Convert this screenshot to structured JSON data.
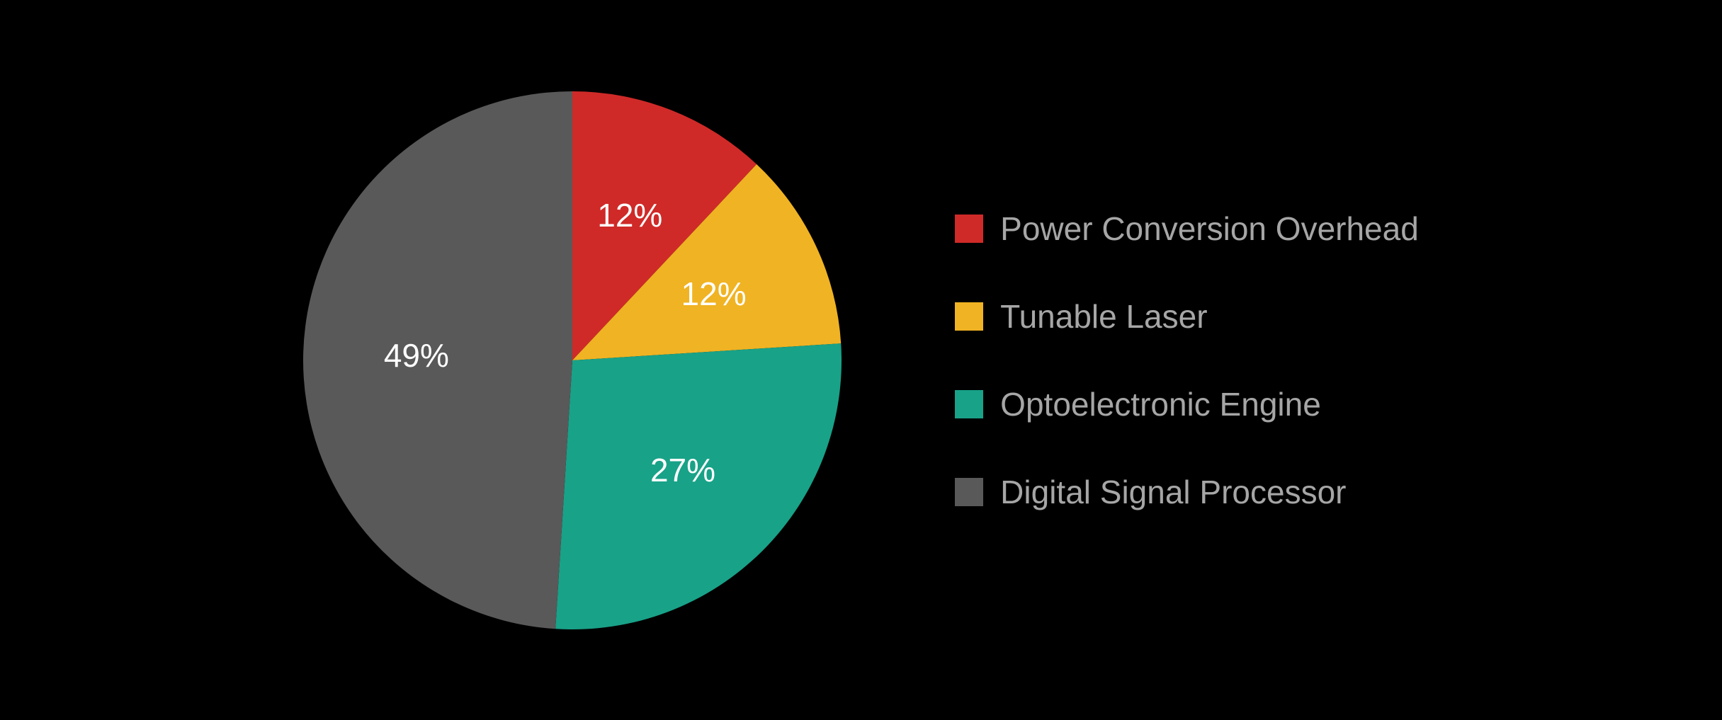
{
  "chart": {
    "type": "pie",
    "background_color": "#000000",
    "pie_radius": 380,
    "start_angle_deg": -90,
    "label_fontsize": 46,
    "label_color": "#ffffff",
    "legend_fontsize": 46,
    "legend_text_color": "#a6a6a6",
    "legend_swatch_size": 40,
    "slices": [
      {
        "label": "Power Conversion Overhead",
        "value": 12,
        "display": "12%",
        "color": "#cf2a28"
      },
      {
        "label": "Tunable Laser",
        "value": 12,
        "display": "12%",
        "color": "#f0b323"
      },
      {
        "label": "Optoelectronic Engine",
        "value": 27,
        "display": "27%",
        "color": "#18a288"
      },
      {
        "label": "Digital Signal Processor",
        "value": 49,
        "display": "49%",
        "color": "#595959"
      }
    ]
  }
}
